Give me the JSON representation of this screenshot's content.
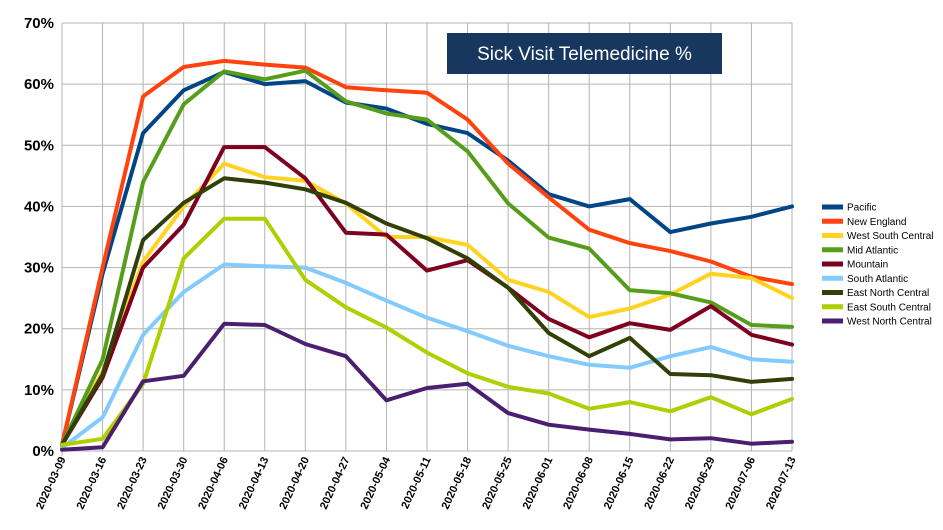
{
  "chart_data": {
    "type": "line",
    "title": "Sick Visit Telemedicine %",
    "title_bg": "#17375e",
    "xlabel": "",
    "ylabel": "",
    "x": [
      "2020-03-09",
      "2020-03-16",
      "2020-03-23",
      "2020-03-30",
      "2020-04-06",
      "2020-04-13",
      "2020-04-20",
      "2020-04-27",
      "2020-05-04",
      "2020-05-11",
      "2020-05-18",
      "2020-05-25",
      "2020-06-01",
      "2020-06-08",
      "2020-06-15",
      "2020-06-22",
      "2020-06-29",
      "2020-07-06",
      "2020-07-13"
    ],
    "ylim": [
      0,
      70
    ],
    "yticks": [
      0,
      10,
      20,
      30,
      40,
      50,
      60,
      70
    ],
    "ytick_labels": [
      "0%",
      "10%",
      "20%",
      "30%",
      "40%",
      "50%",
      "60%",
      "70%"
    ],
    "grid": true,
    "legend_position": "right",
    "series": [
      {
        "name": "Pacific",
        "color": "#004586",
        "values": [
          1,
          29,
          52,
          59,
          62,
          60,
          60.5,
          57,
          56,
          53.5,
          52,
          47.5,
          42,
          40,
          41.2,
          35.8,
          37.2,
          38.3,
          40
        ]
      },
      {
        "name": "New England",
        "color": "#ff420e",
        "values": [
          1,
          30,
          58,
          62.8,
          63.8,
          63.2,
          62.7,
          59.5,
          59,
          58.6,
          54.2,
          47,
          41.5,
          36.2,
          34,
          32.7,
          31,
          28.5,
          27.3
        ]
      },
      {
        "name": "West South Central",
        "color": "#ffd320",
        "values": [
          1,
          13,
          31,
          40,
          47,
          44.8,
          44.2,
          40.5,
          35,
          35,
          33.7,
          28,
          26,
          21.9,
          23.3,
          25.6,
          29,
          28.3,
          25
        ]
      },
      {
        "name": "Mid Atlantic",
        "color": "#579d1c",
        "values": [
          1,
          15,
          44,
          56.7,
          62.1,
          60.8,
          62.2,
          57.2,
          55.2,
          54.2,
          49,
          40.5,
          34.9,
          33.1,
          26.3,
          25.8,
          24.3,
          20.6,
          20.3
        ]
      },
      {
        "name": "Mountain",
        "color": "#7e0021",
        "values": [
          1,
          12,
          30,
          37,
          49.7,
          49.7,
          44.6,
          35.7,
          35.4,
          29.5,
          31.2,
          26.7,
          21.6,
          18.6,
          20.9,
          19.8,
          23.7,
          19,
          17.4
        ]
      },
      {
        "name": "South Atlantic",
        "color": "#83caff",
        "values": [
          0.5,
          5.5,
          19,
          26,
          30.5,
          30.2,
          30,
          27.5,
          24.6,
          21.8,
          19.6,
          17.2,
          15.5,
          14.1,
          13.6,
          15.5,
          17,
          15,
          14.6
        ]
      },
      {
        "name": "East North Central",
        "color": "#314004",
        "values": [
          1,
          12.5,
          34.5,
          40.6,
          44.6,
          43.9,
          42.8,
          40.6,
          37.2,
          34.8,
          31.5,
          26.7,
          19.3,
          15.5,
          18.5,
          12.6,
          12.4,
          11.3,
          11.8
        ]
      },
      {
        "name": "East South Central",
        "color": "#aecf00",
        "values": [
          1,
          2,
          11,
          31.5,
          38,
          38,
          28,
          23.5,
          20.2,
          16.1,
          12.7,
          10.5,
          9.4,
          6.9,
          8,
          6.5,
          8.8,
          6,
          8.5
        ]
      },
      {
        "name": "West North Central",
        "color": "#4b1f6f",
        "values": [
          0.2,
          0.6,
          11.4,
          12.3,
          20.8,
          20.6,
          17.5,
          15.5,
          8.3,
          10.3,
          11,
          6.2,
          4.3,
          3.5,
          2.8,
          1.9,
          2.1,
          1.2,
          1.5
        ]
      }
    ]
  }
}
